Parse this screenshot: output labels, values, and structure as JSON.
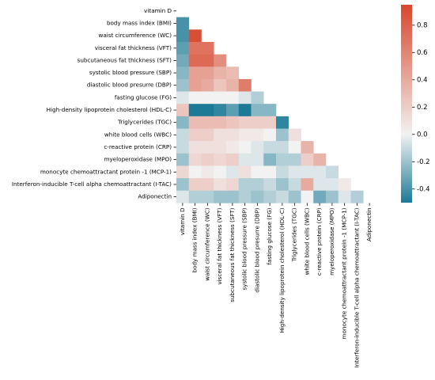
{
  "chart_data": {
    "type": "heatmap",
    "variables": [
      "vitamin D",
      "body mass index (BMI)",
      "waist circumference (WC)",
      "visceral fat thickness (VFT)",
      "subcutaneous fat thickness (SFT)",
      "systolic blood pressure (SBP)",
      "diastolic blood presurre (DBP)",
      "fasting glucose (FG)",
      "High-density lipoprotein cholesterol (HDL-C)",
      "Triglycerides (TGC)",
      "white blood cells (WBC)",
      "c-reactive protein (CRP)",
      "myeloperoxidase (MPO)",
      "monocyte chemoattractant protein -1 (MCP-1)",
      "Interferon-inducible T-cell alpha chemoattractant (I-TAC)",
      "Adiponectin"
    ],
    "mask": "upper-triangle-and-diagonal",
    "values": [
      [],
      [
        -0.4
      ],
      [
        -0.4,
        0.9
      ],
      [
        -0.35,
        0.7,
        0.7
      ],
      [
        -0.3,
        0.75,
        0.75,
        0.55
      ],
      [
        -0.25,
        0.45,
        0.45,
        0.35,
        0.3
      ],
      [
        -0.2,
        0.45,
        0.4,
        0.25,
        0.35,
        0.65
      ],
      [
        -0.05,
        0.0,
        0.0,
        0.0,
        0.0,
        -0.05,
        -0.15
      ],
      [
        0.25,
        -0.5,
        -0.5,
        -0.45,
        -0.35,
        -0.5,
        -0.25,
        -0.25
      ],
      [
        -0.25,
        0.3,
        0.3,
        0.3,
        0.25,
        0.2,
        0.2,
        0.2,
        -0.45
      ],
      [
        -0.1,
        0.2,
        0.2,
        0.1,
        0.1,
        0.05,
        0.05,
        0.0,
        -0.2,
        0.1
      ],
      [
        -0.1,
        0.1,
        0.1,
        0.1,
        0.05,
        0.0,
        -0.05,
        -0.1,
        -0.1,
        0.0,
        0.35
      ],
      [
        -0.2,
        0.15,
        0.2,
        0.15,
        0.2,
        -0.05,
        -0.05,
        -0.25,
        -0.15,
        -0.15,
        0.2,
        0.35
      ],
      [
        0.15,
        0.0,
        0.05,
        0.0,
        -0.05,
        0.1,
        0.0,
        0.0,
        -0.1,
        -0.05,
        -0.05,
        -0.05,
        -0.1
      ],
      [
        -0.2,
        0.2,
        0.2,
        0.1,
        0.15,
        -0.15,
        -0.15,
        -0.1,
        -0.2,
        -0.1,
        0.4,
        -0.05,
        -0.05,
        0.05
      ],
      [
        -0.05,
        -0.15,
        -0.15,
        -0.2,
        -0.2,
        -0.15,
        -0.2,
        -0.15,
        -0.1,
        -0.2,
        0.0,
        -0.3,
        -0.2,
        -0.05,
        -0.15
      ]
    ],
    "colorbar": {
      "range": [
        -0.5,
        0.95
      ],
      "ticks": [
        -0.4,
        -0.2,
        0.0,
        0.2,
        0.4,
        0.6,
        0.8
      ],
      "tick_labels": [
        "-0.4",
        "-0.2",
        "0.0",
        "0.2",
        "0.4",
        "0.6",
        "0.8"
      ],
      "low_color": "#1c7a96",
      "mid_color": "#f2f2f2",
      "high_color": "#d8462b"
    }
  }
}
